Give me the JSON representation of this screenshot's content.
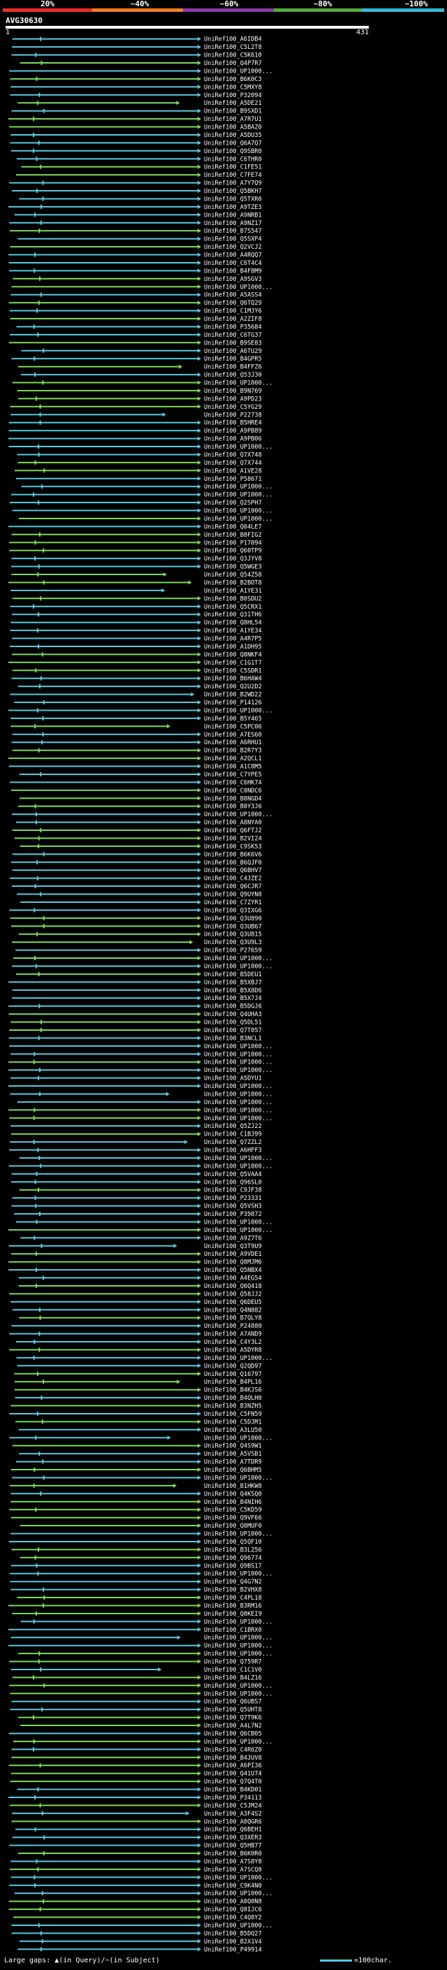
{
  "legend": {
    "labels": [
      "20%",
      "~40%",
      "~60%",
      "~80%",
      "~100%"
    ],
    "colors": [
      "#e8302b",
      "#ef7f22",
      "#8d3aa8",
      "#55a83a",
      "#35b9d6"
    ]
  },
  "query": {
    "name": "AVG30630",
    "start": "1",
    "end": "431"
  },
  "footer": {
    "gaps_label": "Large gaps: ▲(in Query)/~(in Subject)",
    "scale_label": "=100char."
  },
  "chart_data": {
    "type": "alignment",
    "query_length": 431,
    "xlim": [
      1,
      431
    ],
    "colors": {
      "high": "#5bc8dc",
      "mid": "#7ed957",
      "query": "#ffffff"
    },
    "hits": [
      "UniRef100_A6IDB4",
      "UniRef100_C5L2T8",
      "UniRef100_C5K610",
      "UniRef100_Q4P7R7",
      "UniRef100_UP1000...",
      "UniRef100_B6K0C3",
      "UniRef100_C5MXY8",
      "UniRef100_P32094",
      "UniRef100_A5DE21",
      "UniRef100_B9SXD1",
      "UniRef100_A7R7U1",
      "UniRef100_A5BAZ0",
      "UniRef100_A5DU35",
      "UniRef100_Q6A7Q7",
      "UniRef100_Q9SBR0",
      "UniRef100_C6THR0",
      "UniRef100_C1FE51",
      "UniRef100_C7FE74",
      "UniRef100_A7Y7Q9",
      "UniRef100_Q5BKH7",
      "UniRef100_Q5TXR0",
      "UniRef100_A9TZE3",
      "UniRef100_A9NRB1",
      "UniRef100_A9NZ17",
      "UniRef100_B7S547",
      "UniRef100_Q5SXP4",
      "UniRef100_Q2VCJ2",
      "UniRef100_A4RQQ7",
      "UniRef100_C6T4C4",
      "UniRef100_B4F8M9",
      "UniRef100_A9SGV3",
      "UniRef100_UP1000...",
      "UniRef100_A5ASS4",
      "UniRef100_Q6TQ29",
      "UniRef100_C1MJY6",
      "UniRef100_A2ZIF8",
      "UniRef100_P35684",
      "UniRef100_C6TG37",
      "UniRef100_B9SE83",
      "UniRef100_A6TU29",
      "UniRef100_B4GPR5",
      "UniRef100_B4FFZ6",
      "UniRef100_Q53J30",
      "UniRef100_UP1000...",
      "UniRef100_B9N769",
      "UniRef100_A9PD23",
      "UniRef100_C5YG29",
      "UniRef100_P22738",
      "UniRef100_B5HRE4",
      "UniRef100_A9PB89",
      "UniRef100_A9PB06",
      "UniRef100_UP1000...",
      "UniRef100_Q7X748",
      "UniRef100_Q7X744",
      "UniRef100_A1VE28",
      "UniRef100_P58671",
      "UniRef100_UP1000...",
      "UniRef100_UP1000...",
      "UniRef100_Q2SPH7",
      "UniRef100_UP1000...",
      "UniRef100_UP1000...",
      "UniRef100_Q04LE7",
      "UniRef100_B8FIG2",
      "UniRef100_P17094",
      "UniRef100_Q60TP9",
      "UniRef100_Q3JYV8",
      "UniRef100_Q5WGE3",
      "UniRef100_Q54Z58",
      "UniRef100_B2BOT8",
      "UniRef100_A1YE31",
      "UniRef100_B0SDU2",
      "UniRef100_Q5CRX1",
      "UniRef100_Q31TH6",
      "UniRef100_Q8HL54",
      "UniRef100_A1YE34",
      "UniRef100_A4R7P5",
      "UniRef100_A1DH95",
      "UniRef100_Q8NKF4",
      "UniRef100_C1G1T7",
      "UniRef100_C5SDR1",
      "UniRef100_B6HAW4",
      "UniRef100_Q2U2D2",
      "UniRef100_B2WD22",
      "UniRef100_P14126",
      "UniRef100_UP1000...",
      "UniRef100_B5Y465",
      "UniRef100_C5PC06",
      "UniRef100_A7ES60",
      "UniRef100_A6RHU1",
      "UniRef100_B2R7Y3",
      "UniRef100_A2QCL1",
      "UniRef100_A1C8M5",
      "UniRef100_C7YPE5",
      "UniRef100_C6HK74",
      "UniRef100_C0NDC6",
      "UniRef100_B8NGD4",
      "UniRef100_B0Y3J6",
      "UniRef100_UP1000...",
      "UniRef100_A8NYA0",
      "UniRef100_Q6FTJ2",
      "UniRef100_B2VI24",
      "UniRef100_C9SK53",
      "UniRef100_B6K6V6",
      "UniRef100_B6QJF0",
      "UniRef100_Q6BHV7",
      "UniRef100_C4JZE2",
      "UniRef100_Q6CJR7",
      "UniRef100_Q9UYN8",
      "UniRef100_C7ZYR1",
      "UniRef100_Q3IXG6",
      "UniRef100_Q3U890",
      "UniRef100_Q3UB67",
      "UniRef100_Q3U815",
      "UniRef100_Q3U9L3",
      "UniRef100_P27659",
      "UniRef100_UP1000...",
      "UniRef100_UP1000...",
      "UniRef100_B5DEU1",
      "UniRef100_B5XBJ7",
      "UniRef100_B5X8D6",
      "UniRef100_B5X7J4",
      "UniRef100_B5DGJ6",
      "UniRef100_Q4UHA3",
      "UniRef100_Q5DL51",
      "UniRef100_Q7T057",
      "UniRef100_B3NCL1",
      "UniRef100_UP1000...",
      "UniRef100_UP1000...",
      "UniRef100_UP1000...",
      "UniRef100_UP1000...",
      "UniRef100_A5DYU1",
      "UniRef100_UP1000...",
      "UniRef100_UP1000...",
      "UniRef100_UP1000...",
      "UniRef100_UP1000...",
      "UniRef100_UP1000...",
      "UniRef100_Q5ZJ22",
      "UniRef100_C1BJ99",
      "UniRef100_Q7ZZL2",
      "UniRef100_A6HFF3",
      "UniRef100_UP1000...",
      "UniRef100_UP1000...",
      "UniRef100_Q5VAA4",
      "UniRef100_Q96SL0",
      "UniRef100_C9JF38",
      "UniRef100_P23331",
      "UniRef100_Q5VSH3",
      "UniRef100_P39872",
      "UniRef100_UP1000...",
      "UniRef100_UP1000...",
      "UniRef100_A9Z7T6",
      "UniRef100_Q3T9U9",
      "UniRef100_A9VDE1",
      "UniRef100_Q8MJM6",
      "UniRef100_Q5NBX4",
      "UniRef100_A4EG54",
      "UniRef100_Q6Q418",
      "UniRef100_Q58JJ2",
      "UniRef100_Q6DEU5",
      "UniRef100_Q4N882",
      "UniRef100_B7QLY8",
      "UniRef100_P24880",
      "UniRef100_A7AND9",
      "UniRef100_C4Y3L2",
      "UniRef100_A5DYR8",
      "UniRef100_UP1000...",
      "UniRef100_Q2QD97",
      "UniRef100_Q16797",
      "UniRef100_B4PL16",
      "UniRef100_B4KJS6",
      "UniRef100_B4QLH0",
      "UniRef100_B3NZH5",
      "UniRef100_C5FN59",
      "UniRef100_C5DJM1",
      "UniRef100_A3LU50",
      "UniRef100_UP1000...",
      "UniRef100_Q4S9W1",
      "UniRef100_A5VSB1",
      "UniRef100_A7TDR9",
      "UniRef100_Q6BHM5",
      "UniRef100_UP1000...",
      "UniRef100_B1HKW8",
      "UniRef100_Q4KSQ0",
      "UniRef100_B4NIH6",
      "UniRef100_C5KD59",
      "UniRef100_Q9VF66",
      "UniRef100_Q8MUF0",
      "UniRef100_UP1000...",
      "UniRef100_Q5QF10",
      "UniRef100_B3L256",
      "UniRef100_Q96774",
      "UniRef100_Q9BS17",
      "UniRef100_UP1000...",
      "UniRef100_Q4G7N2",
      "UniRef100_B2VHX8",
      "UniRef100_C4PL18",
      "UniRef100_B3RM16",
      "UniRef100_Q8KEI9",
      "UniRef100_UP1000...",
      "UniRef100_C1BRX0",
      "UniRef100_UP1000...",
      "UniRef100_UP1000...",
      "UniRef100_UP1000...",
      "UniRef100_Q759R7",
      "UniRef100_C1C1V0",
      "UniRef100_B4LZ16",
      "UniRef100_UP1000...",
      "UniRef100_UP1000...",
      "UniRef100_Q6UBS7",
      "UniRef100_Q5UHT8",
      "UniRef100_Q7T9K6",
      "UniRef100_A4L7N2",
      "UniRef100_Q6CB05",
      "UniRef100_UP1000...",
      "UniRef100_C4R6Z0",
      "UniRef100_B4JUV8",
      "UniRef100_A6PI36",
      "UniRef100_Q41U74",
      "UniRef100_Q7Q4T0",
      "UniRef100_B4KD01",
      "UniRef100_P34113",
      "UniRef100_C5JM24",
      "UniRef100_A3F4S2",
      "UniRef100_A0QGR6",
      "UniRef100_Q6BEH1",
      "UniRef100_Q3XER3",
      "UniRef100_Q5HB77",
      "UniRef100_B6K0R0",
      "UniRef100_A7S8Y8",
      "UniRef100_A7SCQ8",
      "UniRef100_UP1000...",
      "UniRef100_C9K4N0",
      "UniRef100_UP1000...",
      "UniRef100_A0Q0N8",
      "UniRef100_Q8IJC6",
      "UniRef100_C4Q8Y2",
      "UniRef100_UP1000...",
      "UniRef100_B5DQ27",
      "UniRef100_B2X1V4",
      "UniRef100_P49914"
    ]
  }
}
